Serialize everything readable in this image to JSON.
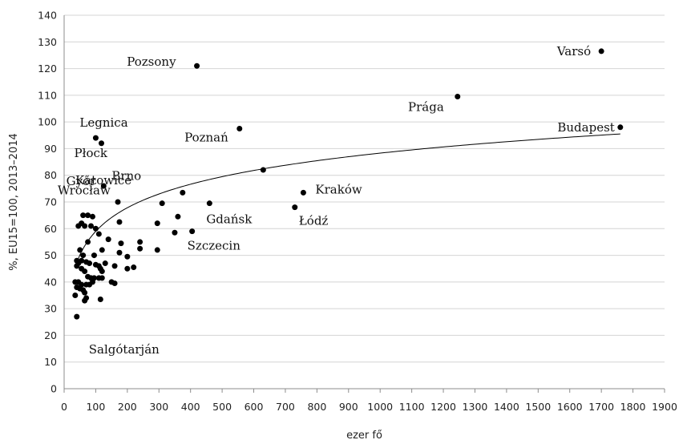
{
  "chart_data": {
    "type": "scatter",
    "title": "",
    "xlabel": "ezer fő",
    "ylabel": "%, EU15=100, 2013–2014",
    "xlim": [
      0,
      1900
    ],
    "ylim": [
      0,
      140
    ],
    "xticks": [
      0,
      100,
      200,
      300,
      400,
      500,
      600,
      700,
      800,
      900,
      1000,
      1100,
      1200,
      1300,
      1400,
      1500,
      1600,
      1700,
      1800,
      1900
    ],
    "yticks": [
      0,
      10,
      20,
      30,
      40,
      50,
      60,
      70,
      80,
      90,
      100,
      110,
      120,
      130,
      140
    ],
    "grid": "horizontal",
    "legend": "none",
    "colors": {
      "points": "#000000",
      "grid": "#d4d4d4",
      "trend": "#000000"
    },
    "points": [
      [
        420,
        121
      ],
      [
        1700,
        126.5
      ],
      [
        1245,
        109.5
      ],
      [
        1760,
        98
      ],
      [
        555,
        97.5
      ],
      [
        100,
        94
      ],
      [
        118,
        92
      ],
      [
        630,
        82
      ],
      [
        125,
        76
      ],
      [
        757,
        73.5
      ],
      [
        375,
        73.5
      ],
      [
        730,
        68
      ],
      [
        310,
        69.5
      ],
      [
        460,
        69.5
      ],
      [
        170,
        70
      ],
      [
        60,
        65
      ],
      [
        75,
        65
      ],
      [
        90,
        64.5
      ],
      [
        175,
        62.5
      ],
      [
        55,
        62
      ],
      [
        65,
        61
      ],
      [
        85,
        61
      ],
      [
        100,
        60
      ],
      [
        45,
        61
      ],
      [
        110,
        58
      ],
      [
        140,
        56
      ],
      [
        180,
        54.5
      ],
      [
        240,
        55
      ],
      [
        75,
        55
      ],
      [
        120,
        52
      ],
      [
        95,
        50
      ],
      [
        50,
        52
      ],
      [
        60,
        50
      ],
      [
        40,
        48
      ],
      [
        55,
        48
      ],
      [
        70,
        47.5
      ],
      [
        80,
        47
      ],
      [
        100,
        46.5
      ],
      [
        115,
        45
      ],
      [
        200,
        49.5
      ],
      [
        175,
        51
      ],
      [
        240,
        52.5
      ],
      [
        295,
        52
      ],
      [
        350,
        58.5
      ],
      [
        360,
        64.5
      ],
      [
        405,
        59
      ],
      [
        295,
        62
      ],
      [
        110,
        46
      ],
      [
        120,
        44
      ],
      [
        160,
        46
      ],
      [
        200,
        45
      ],
      [
        220,
        45.5
      ],
      [
        40,
        46
      ],
      [
        55,
        45
      ],
      [
        65,
        44
      ],
      [
        75,
        42
      ],
      [
        85,
        41.5
      ],
      [
        95,
        41.5
      ],
      [
        110,
        41.5
      ],
      [
        120,
        41.5
      ],
      [
        150,
        40
      ],
      [
        160,
        39.5
      ],
      [
        35,
        40
      ],
      [
        45,
        40
      ],
      [
        55,
        39
      ],
      [
        70,
        39
      ],
      [
        80,
        39
      ],
      [
        90,
        40
      ],
      [
        40,
        38
      ],
      [
        50,
        37.5
      ],
      [
        60,
        37
      ],
      [
        65,
        36
      ],
      [
        70,
        34
      ],
      [
        115,
        33.5
      ],
      [
        35,
        35
      ],
      [
        40,
        27
      ],
      [
        65,
        33
      ],
      [
        45,
        47
      ],
      [
        130,
        47
      ]
    ],
    "labels": [
      {
        "text": "Varsó",
        "x": 1700,
        "y": 126.5
      },
      {
        "text": "Pozsony",
        "x": 420,
        "y": 121
      },
      {
        "text": "Prága",
        "x": 1245,
        "y": 109.5
      },
      {
        "text": "Budapest",
        "x": 1760,
        "y": 98
      },
      {
        "text": "Poznań",
        "x": 555,
        "y": 97.5
      },
      {
        "text": "Legnica",
        "x": 100,
        "y": 94
      },
      {
        "text": "Płock",
        "x": 118,
        "y": 92
      },
      {
        "text": "Győr",
        "x": 125,
        "y": 76
      },
      {
        "text": "Katowice",
        "x": 170,
        "y": 70
      },
      {
        "text": "Brno",
        "x": 310,
        "y": 69.5
      },
      {
        "text": "Wrocław",
        "x": 375,
        "y": 73.5
      },
      {
        "text": "Kraków",
        "x": 757,
        "y": 73.5
      },
      {
        "text": "Gdańsk",
        "x": 460,
        "y": 69.5
      },
      {
        "text": "Łódź",
        "x": 730,
        "y": 68
      },
      {
        "text": "Szczecin",
        "x": 405,
        "y": 59
      },
      {
        "text": "Salgótarján",
        "x": 40,
        "y": 27
      }
    ],
    "trendline": {
      "kind": "logarithmic",
      "x_range": [
        35,
        1760
      ],
      "passes_through": [
        [
          100,
          59
        ],
        [
          1760,
          95.5
        ]
      ]
    }
  }
}
